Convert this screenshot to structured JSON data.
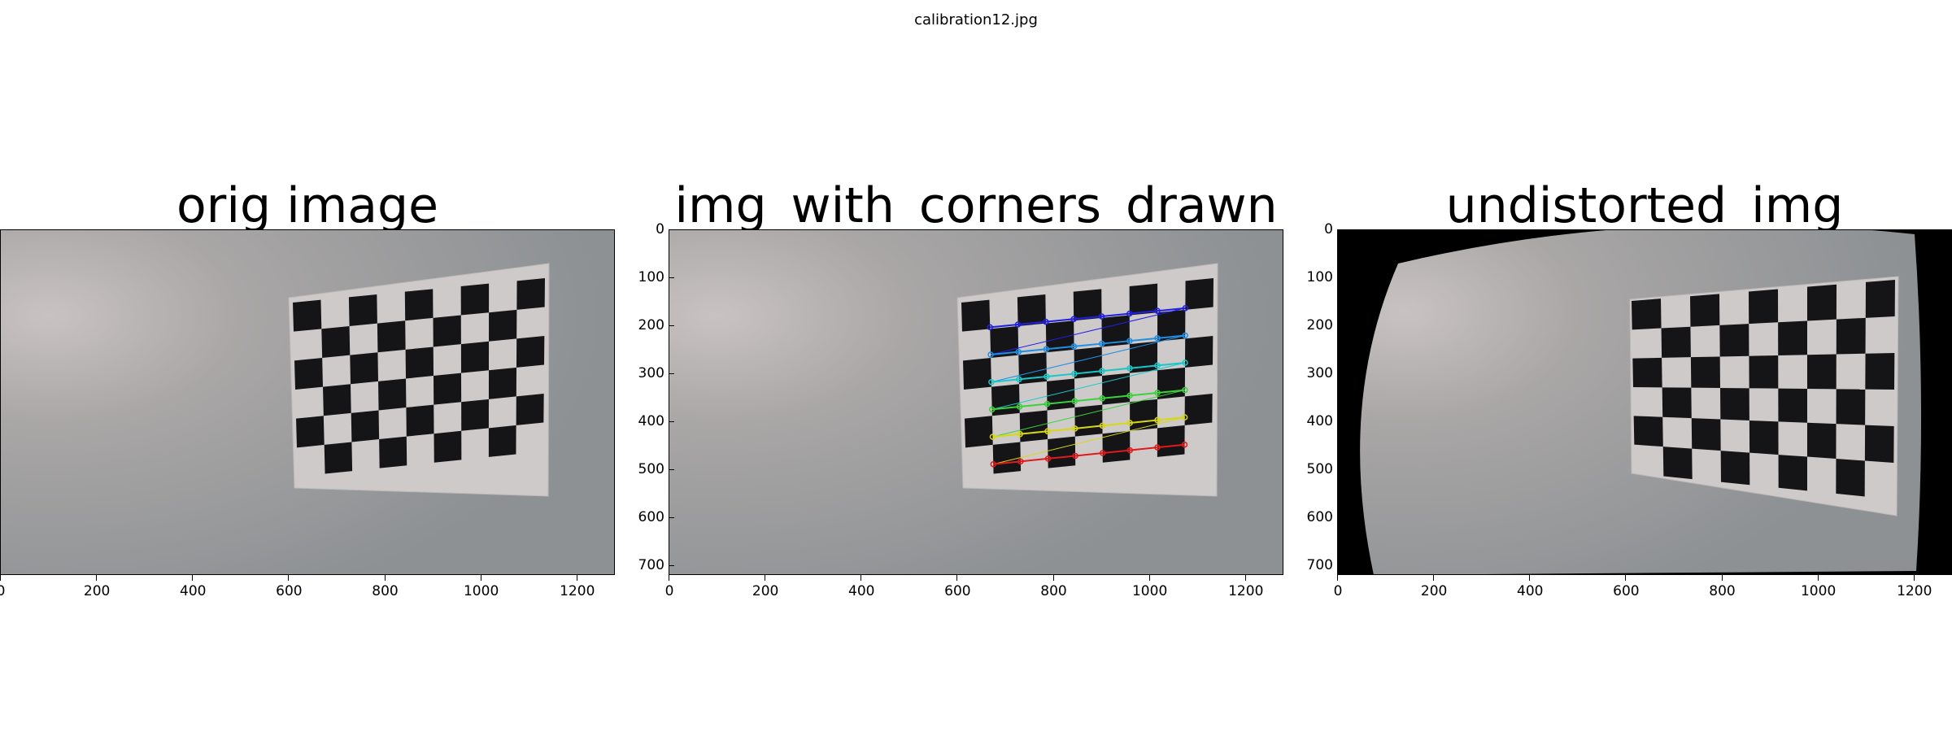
{
  "figure": {
    "title": "calibration12.jpg"
  },
  "panels": [
    {
      "title": "orig image",
      "x_ticks": [
        "0",
        "200",
        "400",
        "600",
        "800",
        "1000",
        "1200"
      ],
      "y_ticks": []
    },
    {
      "title": "img_with_corners_drawn",
      "x_ticks": [
        "0",
        "200",
        "400",
        "600",
        "800",
        "1000",
        "1200"
      ],
      "y_ticks": [
        "0",
        "100",
        "200",
        "300",
        "400",
        "500",
        "600",
        "700"
      ]
    },
    {
      "title": "undistorted_img",
      "x_ticks": [
        "0",
        "200",
        "400",
        "600",
        "800",
        "1000",
        "1200"
      ],
      "y_ticks": [
        "0",
        "100",
        "200",
        "300",
        "400",
        "500",
        "600",
        "700"
      ]
    }
  ],
  "axes": {
    "x_range": [
      0,
      1280
    ],
    "y_range": [
      720,
      0
    ]
  },
  "corner_row_colors": [
    "#1f1fe6",
    "#1f8fe6",
    "#16c8c8",
    "#3ad23a",
    "#d8d812",
    "#e01a1a"
  ]
}
